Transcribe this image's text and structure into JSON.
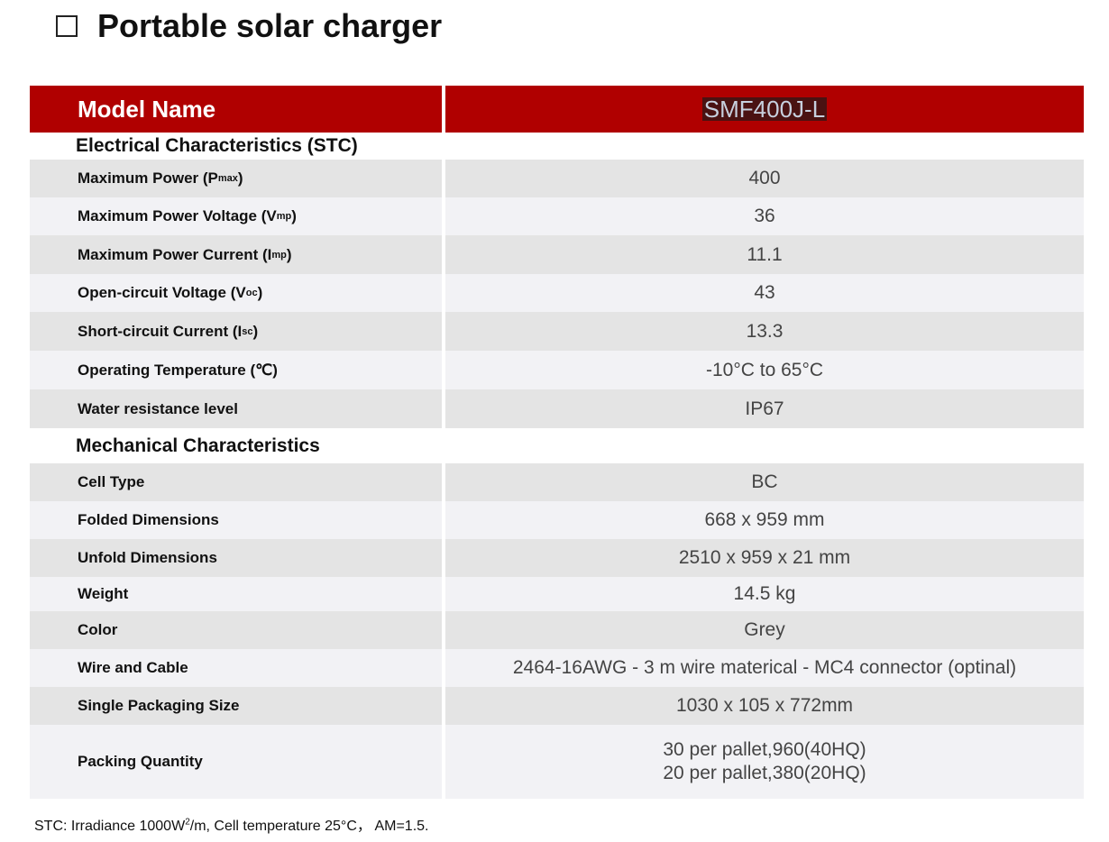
{
  "header": {
    "title": "Portable solar charger"
  },
  "table": {
    "header": [
      "Model Name",
      "SMF400J-L"
    ],
    "sections": [
      {
        "title": "Electrical Characteristics (STC)",
        "rows": [
          {
            "label": {
              "text": "Maximum Power (P",
              "sub": "max",
              "after": ")"
            },
            "value": "400"
          },
          {
            "label": {
              "text": "Maximum Power Voltage (V",
              "sub": "mp",
              "after": ")"
            },
            "value": "36"
          },
          {
            "label": {
              "text": "Maximum Power Current (I",
              "sub": "mp",
              "after": ")"
            },
            "value": "11.1"
          },
          {
            "label": {
              "text": "Open-circuit Voltage (V",
              "sub": "oc",
              "after": ")"
            },
            "value": "43"
          },
          {
            "label": {
              "text": "Short-circuit Current (I",
              "sub": "sc",
              "after": ")"
            },
            "value": "13.3"
          },
          {
            "label": "Operating Temperature (℃)",
            "value": "-10°C to 65°C"
          },
          {
            "label": "Water resistance level",
            "value": "IP67"
          }
        ]
      },
      {
        "title": "Mechanical Characteristics",
        "rows": [
          {
            "label": "Cell Type",
            "value": "BC"
          },
          {
            "label": "Folded Dimensions",
            "value": "668 x 959 mm"
          },
          {
            "label": "Unfold Dimensions",
            "value": "2510 x 959 x 21 mm"
          },
          {
            "label": "Weight",
            "value": "14.5 kg"
          },
          {
            "label": "Color",
            "value": "Grey"
          },
          {
            "label": "Wire and Cable",
            "value": "2464-16AWG -  3 m wire materical - MC4 connector (optinal)"
          },
          {
            "label": "Single Packaging Size",
            "value": "1030 x 105 x 772mm"
          },
          {
            "label": "Packing Quantity",
            "value": [
              "30 per pallet,960(40HQ)",
              "20 per pallet,380(20HQ)"
            ]
          }
        ]
      }
    ]
  },
  "footnote": {
    "text": "STC: Irradiance 1000W",
    "sup": "2",
    "after": "/m, Cell temperature 25°C， AM=1.5."
  }
}
